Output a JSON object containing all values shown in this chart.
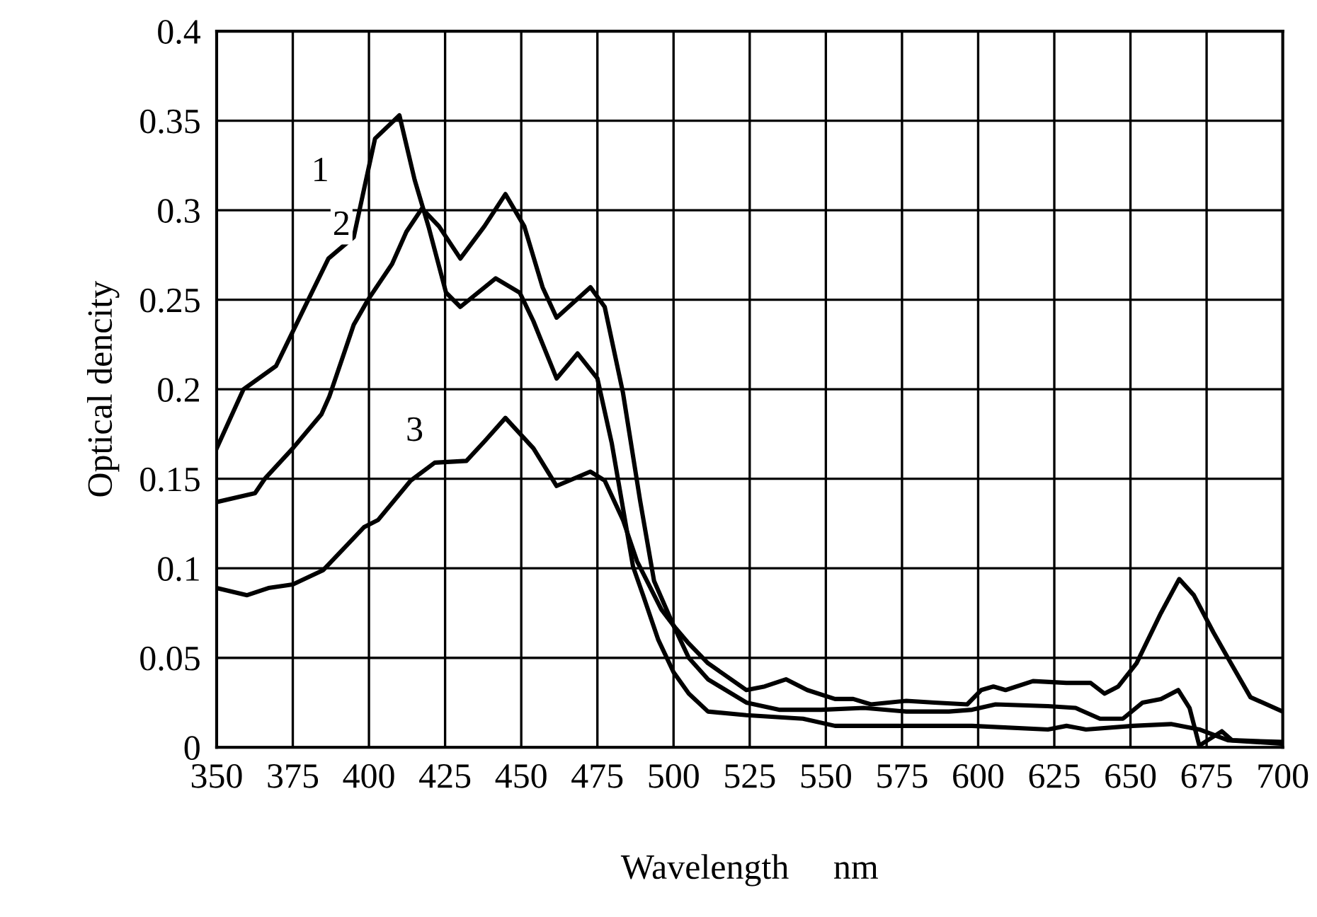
{
  "chart_data": {
    "type": "line",
    "xlabel": "Wavelength     nm",
    "ylabel": "Optical dencity",
    "xlim": [
      350,
      700
    ],
    "ylim": [
      0,
      0.4
    ],
    "xticks": [
      350,
      375,
      400,
      425,
      450,
      475,
      500,
      525,
      550,
      575,
      600,
      625,
      650,
      675,
      700
    ],
    "yticks": [
      0,
      0.05,
      0.1,
      0.15,
      0.2,
      0.25,
      0.3,
      0.35,
      0.4
    ],
    "grid": true,
    "line_style": "solid",
    "annotations": [
      {
        "text": "1",
        "x": 384,
        "y": 0.321
      },
      {
        "text": "2",
        "x": 391,
        "y": 0.291
      },
      {
        "text": "3",
        "x": 415,
        "y": 0.176
      }
    ],
    "series": [
      {
        "color": "#000000",
        "x": [
          350,
          358.8,
          369.5,
          379.8,
          386.7,
          395,
          398.8,
          402,
          410,
          415,
          419.7,
          425.3,
          430,
          441.6,
          449.5,
          454,
          461.6,
          468.5,
          475,
          479.7,
          486.7,
          490,
          495,
          500,
          505,
          511.3,
          523.9,
          542.5,
          553,
          573,
          598,
          622.9,
          629,
          635.4,
          650.8,
          663.3,
          672.6,
          682,
          700
        ],
        "values": [
          0.167,
          0.2,
          0.213,
          0.249,
          0.273,
          0.285,
          0.315,
          0.34,
          0.353,
          0.317,
          0.29,
          0.254,
          0.246,
          0.262,
          0.254,
          0.238,
          0.206,
          0.22,
          0.206,
          0.17,
          0.101,
          0.085,
          0.06,
          0.042,
          0.03,
          0.02,
          0.018,
          0.016,
          0.012,
          0.012,
          0.012,
          0.01,
          0.012,
          0.01,
          0.012,
          0.013,
          0.01,
          0.004,
          0.002
        ]
      },
      {
        "color": "#000000",
        "x": [
          350,
          362.6,
          365.8,
          375,
          384.4,
          387,
          395,
          399.7,
          407.6,
          412.3,
          417.4,
          423,
          430,
          437.9,
          444.8,
          451,
          457,
          461.6,
          472.7,
          477.4,
          483.4,
          489,
          493.6,
          500,
          505,
          511.3,
          523.9,
          534.6,
          548.5,
          562.5,
          576.4,
          590.4,
          598,
          605.7,
          622.9,
          632,
          640,
          647.5,
          654,
          660,
          665.7,
          669.4,
          672.6,
          680,
          683.3,
          700
        ],
        "values": [
          0.137,
          0.142,
          0.15,
          0.167,
          0.186,
          0.196,
          0.236,
          0.25,
          0.27,
          0.288,
          0.301,
          0.291,
          0.273,
          0.291,
          0.309,
          0.291,
          0.257,
          0.24,
          0.257,
          0.246,
          0.198,
          0.138,
          0.093,
          0.068,
          0.05,
          0.038,
          0.025,
          0.021,
          0.021,
          0.022,
          0.02,
          0.02,
          0.021,
          0.024,
          0.023,
          0.022,
          0.016,
          0.016,
          0.025,
          0.027,
          0.032,
          0.022,
          0.001,
          0.009,
          0.004,
          0.003
        ]
      },
      {
        "color": "#000000",
        "x": [
          350,
          360,
          367,
          375,
          385,
          398.4,
          403,
          413.7,
          421.6,
          432,
          438,
          444.8,
          454,
          461.6,
          472.7,
          477.4,
          483.4,
          488,
          496,
          500,
          505,
          511.3,
          523.9,
          529.9,
          536.9,
          543.9,
          553,
          559,
          564.8,
          576.4,
          585.7,
          596.4,
          601,
          605,
          609,
          618,
          629,
          636.9,
          641.5,
          646,
          652,
          660,
          666,
          670.8,
          677.3,
          683.3,
          689.4,
          700
        ],
        "values": [
          0.089,
          0.085,
          0.089,
          0.091,
          0.099,
          0.123,
          0.127,
          0.149,
          0.159,
          0.16,
          0.171,
          0.184,
          0.167,
          0.146,
          0.154,
          0.149,
          0.127,
          0.104,
          0.077,
          0.068,
          0.058,
          0.047,
          0.032,
          0.034,
          0.038,
          0.032,
          0.027,
          0.027,
          0.024,
          0.026,
          0.025,
          0.024,
          0.032,
          0.034,
          0.032,
          0.037,
          0.036,
          0.036,
          0.03,
          0.034,
          0.047,
          0.075,
          0.094,
          0.085,
          0.064,
          0.046,
          0.028,
          0.02
        ]
      }
    ]
  }
}
